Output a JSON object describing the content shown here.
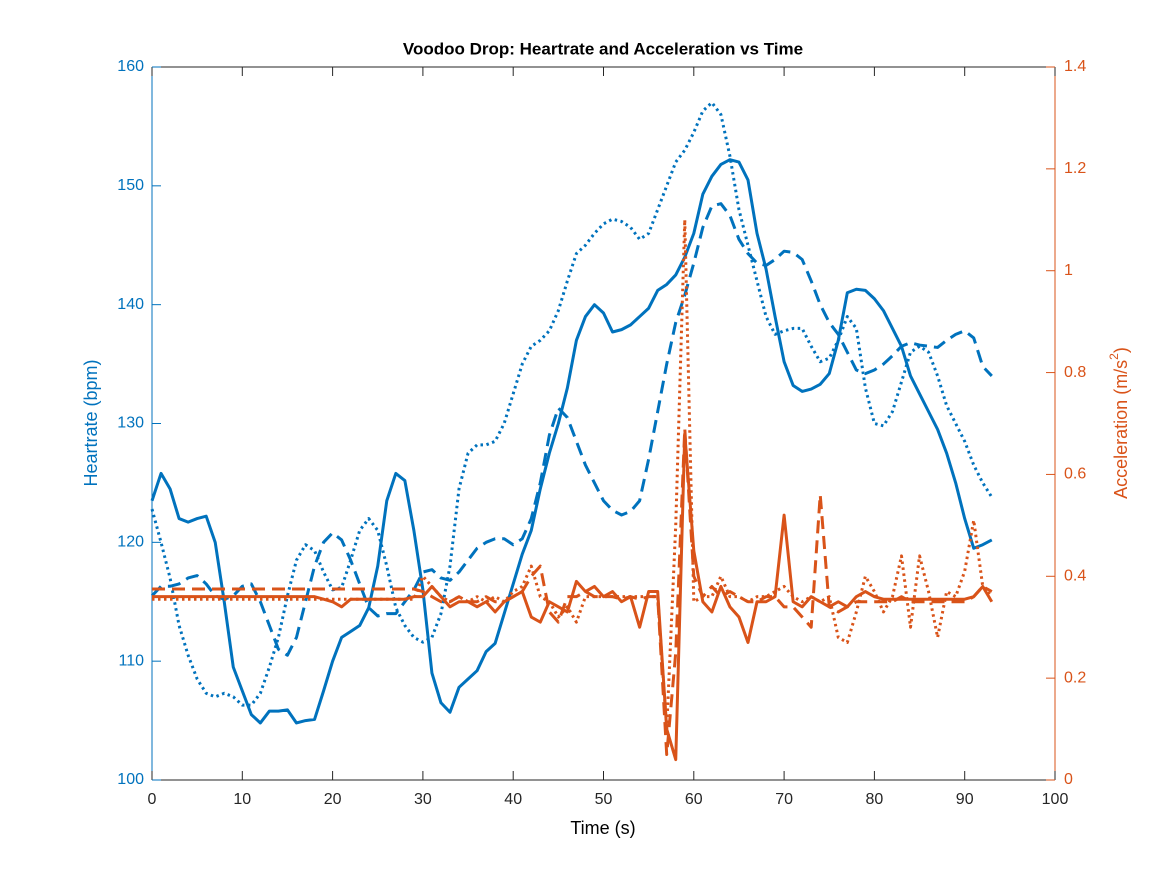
{
  "chart_data": {
    "type": "line",
    "title": "Voodoo Drop: Heartrate and Acceleration vs Time",
    "xlabel": "Time (s)",
    "ylabel": "Heartrate (bpm)",
    "y2label": [
      "Acceleration (m/s",
      "2",
      ")"
    ],
    "xlim": [
      0,
      100
    ],
    "xticks": [
      0,
      10,
      20,
      30,
      40,
      50,
      60,
      70,
      80,
      90,
      100
    ],
    "ylim": [
      100,
      160
    ],
    "yticks": [
      100,
      110,
      120,
      130,
      140,
      150,
      160
    ],
    "y2lim": [
      0,
      1.4
    ],
    "y2ticks": [
      0,
      0.2,
      0.4,
      0.6,
      0.8,
      1,
      1.2,
      1.4
    ],
    "y_axis_color": "#0072BD",
    "y2_axis_color": "#D95319",
    "x": [
      0,
      1,
      2,
      3,
      4,
      5,
      6,
      7,
      8,
      9,
      10,
      11,
      12,
      13,
      14,
      15,
      16,
      17,
      18,
      19,
      20,
      21,
      22,
      23,
      24,
      25,
      26,
      27,
      28,
      29,
      30,
      31,
      32,
      33,
      34,
      35,
      36,
      37,
      38,
      39,
      40,
      41,
      42,
      43,
      44,
      45,
      46,
      47,
      48,
      49,
      50,
      51,
      52,
      53,
      54,
      55,
      56,
      57,
      58,
      59,
      60,
      61,
      62,
      63,
      64,
      65,
      66,
      67,
      68,
      69,
      70,
      71,
      72,
      73,
      74,
      75,
      76,
      77,
      78,
      79,
      80,
      81,
      82,
      83,
      84,
      85,
      86,
      87,
      88,
      89,
      90,
      91,
      92,
      93
    ],
    "series": [
      {
        "color": "#0072BD",
        "line_style": "solid",
        "axis": "y",
        "values": [
          123.5,
          125.8,
          124.5,
          122,
          121.7,
          122,
          122.2,
          120,
          115,
          109.5,
          107.5,
          105.5,
          104.8,
          105.8,
          105.8,
          105.9,
          104.8,
          105,
          105.1,
          107.5,
          110,
          112,
          112.5,
          113,
          114.5,
          118,
          123.5,
          125.8,
          125.2,
          121,
          116,
          109,
          106.5,
          105.7,
          107.8,
          108.5,
          109.2,
          110.8,
          111.5,
          114,
          116.5,
          119,
          121,
          124.5,
          127.5,
          130,
          133,
          137,
          139,
          140,
          139.3,
          137.7,
          137.9,
          138.3,
          139,
          139.7,
          141.2,
          141.7,
          142.5,
          144,
          146,
          149.3,
          150.8,
          151.8,
          152.2,
          152,
          150.5,
          146,
          143,
          139,
          135.2,
          133.2,
          132.7,
          132.9,
          133.3,
          134.2,
          137,
          141,
          141.3,
          141.2,
          140.5,
          139.5,
          138,
          136.5,
          134,
          132.5,
          131,
          129.5,
          127.5,
          125,
          122,
          119.5,
          119.8,
          120.2
        ]
      },
      {
        "color": "#0072BD",
        "line_style": "dashed",
        "axis": "y",
        "values": [
          115.5,
          116.3,
          116.3,
          116.5,
          117,
          117.2,
          116.5,
          115.5,
          115.2,
          115.5,
          116.3,
          116.5,
          115,
          113,
          111,
          110.5,
          112,
          115,
          118,
          120,
          120.8,
          120.2,
          118.5,
          116.5,
          114.5,
          113.8,
          114,
          114,
          115,
          116,
          117.5,
          117.7,
          117,
          116.8,
          117.5,
          118.5,
          119.5,
          120,
          120.3,
          120.3,
          119.8,
          120.3,
          122,
          125,
          129,
          131.3,
          130.5,
          128.5,
          126.5,
          125,
          123.5,
          122.7,
          122.3,
          122.6,
          123.5,
          127,
          131,
          135,
          138.5,
          140.8,
          143.5,
          146.5,
          148.3,
          148.5,
          147.5,
          145.5,
          144.3,
          143.5,
          143.3,
          143.8,
          144.5,
          144.4,
          143.8,
          142,
          140,
          138.5,
          137.5,
          136,
          134.5,
          134.2,
          134.5,
          135,
          135.7,
          136.5,
          136.8,
          136.6,
          136.5,
          136.4,
          137,
          137.5,
          137.8,
          137.2,
          134.8,
          134
        ]
      },
      {
        "color": "#0072BD",
        "line_style": "dotted",
        "axis": "y",
        "values": [
          122.8,
          120,
          117,
          113,
          110.5,
          108.5,
          107.3,
          107,
          107.3,
          107,
          106.3,
          106.3,
          107.3,
          109.5,
          112,
          115.5,
          118.5,
          119.8,
          119.3,
          117.5,
          116,
          116.2,
          118.5,
          121,
          122,
          121,
          118,
          114.5,
          113,
          112,
          111.6,
          112,
          114,
          118,
          124.5,
          127.5,
          128.2,
          128.2,
          128.5,
          130,
          132.5,
          135,
          136.5,
          137,
          137.8,
          139.5,
          142,
          144.3,
          145,
          146,
          146.8,
          147.2,
          147,
          146.5,
          145.5,
          146,
          148,
          150,
          152,
          153,
          154.5,
          156.3,
          157,
          156,
          152.5,
          148,
          145,
          142,
          139,
          137.5,
          137.8,
          138,
          138,
          136.5,
          135.2,
          135.5,
          137,
          139,
          138,
          133,
          130,
          129.8,
          131,
          133.5,
          136,
          136.5,
          136,
          134,
          131.5,
          130,
          128.5,
          126.5,
          125,
          123.8
        ]
      },
      {
        "color": "#D95319",
        "line_style": "solid",
        "axis": "y2",
        "values": [
          0.36,
          0.36,
          0.36,
          0.36,
          0.36,
          0.36,
          0.36,
          0.36,
          0.36,
          0.36,
          0.36,
          0.36,
          0.36,
          0.36,
          0.36,
          0.36,
          0.36,
          0.36,
          0.36,
          0.355,
          0.35,
          0.34,
          0.355,
          0.355,
          0.355,
          0.355,
          0.355,
          0.355,
          0.355,
          0.36,
          0.36,
          0.38,
          0.36,
          0.34,
          0.35,
          0.35,
          0.34,
          0.35,
          0.33,
          0.35,
          0.36,
          0.37,
          0.32,
          0.31,
          0.35,
          0.34,
          0.33,
          0.39,
          0.37,
          0.38,
          0.36,
          0.37,
          0.35,
          0.36,
          0.3,
          0.37,
          0.37,
          0.1,
          0.04,
          0.68,
          0.45,
          0.35,
          0.33,
          0.38,
          0.34,
          0.32,
          0.27,
          0.35,
          0.35,
          0.36,
          0.52,
          0.35,
          0.34,
          0.36,
          0.35,
          0.34,
          0.35,
          0.34,
          0.36,
          0.37,
          0.36,
          0.355,
          0.355,
          0.355,
          0.355,
          0.355,
          0.355,
          0.355,
          0.355,
          0.355,
          0.355,
          0.36,
          0.38,
          0.35
        ]
      },
      {
        "color": "#D95319",
        "line_style": "dashed",
        "axis": "y2",
        "values": [
          0.375,
          0.375,
          0.375,
          0.375,
          0.375,
          0.375,
          0.375,
          0.375,
          0.375,
          0.375,
          0.375,
          0.375,
          0.375,
          0.375,
          0.375,
          0.375,
          0.375,
          0.375,
          0.375,
          0.375,
          0.375,
          0.375,
          0.375,
          0.375,
          0.375,
          0.375,
          0.375,
          0.375,
          0.375,
          0.375,
          0.37,
          0.36,
          0.35,
          0.35,
          0.36,
          0.35,
          0.35,
          0.36,
          0.35,
          0.35,
          0.36,
          0.37,
          0.4,
          0.42,
          0.33,
          0.31,
          0.36,
          0.36,
          0.37,
          0.36,
          0.36,
          0.36,
          0.355,
          0.36,
          0.355,
          0.36,
          0.36,
          0.05,
          0.25,
          0.69,
          0.4,
          0.36,
          0.38,
          0.36,
          0.37,
          0.36,
          0.35,
          0.35,
          0.36,
          0.36,
          0.34,
          0.34,
          0.32,
          0.3,
          0.56,
          0.34,
          0.33,
          0.34,
          0.35,
          0.35,
          0.35,
          0.35,
          0.35,
          0.36,
          0.35,
          0.35,
          0.35,
          0.35,
          0.35,
          0.35,
          0.35,
          0.36,
          0.38,
          0.37
        ]
      },
      {
        "color": "#D95319",
        "line_style": "dotted",
        "axis": "y2",
        "values": [
          0.355,
          0.355,
          0.355,
          0.355,
          0.355,
          0.355,
          0.355,
          0.355,
          0.355,
          0.355,
          0.355,
          0.355,
          0.355,
          0.355,
          0.355,
          0.355,
          0.355,
          0.355,
          0.355,
          0.355,
          0.355,
          0.355,
          0.355,
          0.355,
          0.355,
          0.355,
          0.355,
          0.355,
          0.355,
          0.355,
          0.4,
          0.38,
          0.36,
          0.35,
          0.36,
          0.35,
          0.36,
          0.35,
          0.36,
          0.35,
          0.37,
          0.38,
          0.42,
          0.36,
          0.35,
          0.32,
          0.34,
          0.31,
          0.36,
          0.36,
          0.36,
          0.36,
          0.36,
          0.36,
          0.36,
          0.36,
          0.36,
          0.1,
          0.5,
          1.1,
          0.35,
          0.36,
          0.36,
          0.4,
          0.36,
          0.36,
          0.35,
          0.36,
          0.36,
          0.37,
          0.38,
          0.36,
          0.35,
          0.36,
          0.35,
          0.36,
          0.28,
          0.27,
          0.33,
          0.4,
          0.37,
          0.33,
          0.36,
          0.44,
          0.3,
          0.44,
          0.37,
          0.28,
          0.37,
          0.36,
          0.41,
          0.51,
          0.38,
          0.36
        ]
      }
    ]
  }
}
